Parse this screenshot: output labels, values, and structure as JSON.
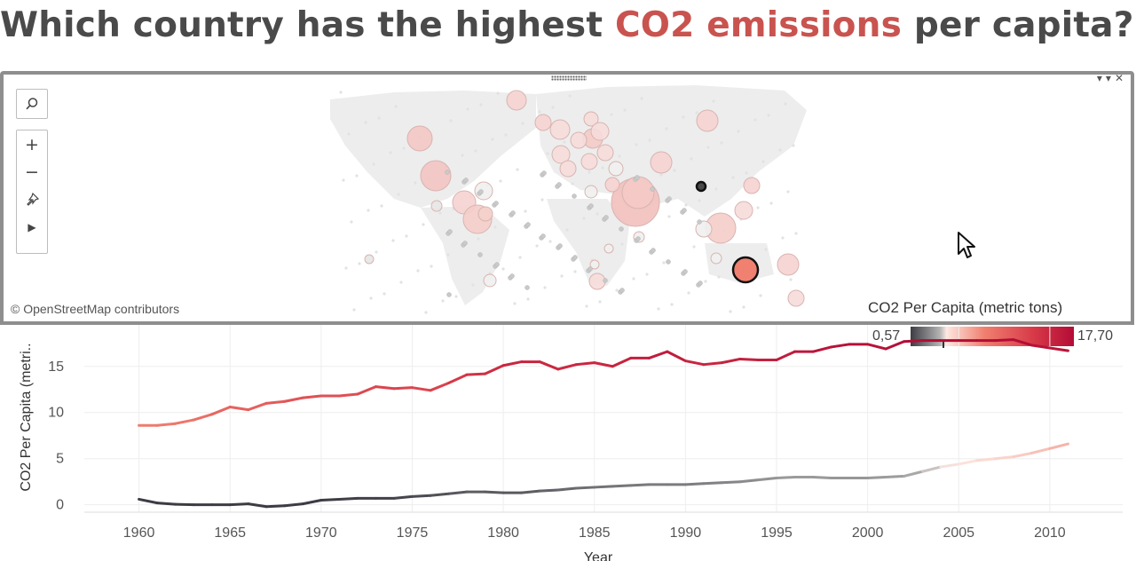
{
  "title": {
    "prefix": "Which country has the highest ",
    "highlight": "CO2 emissions",
    "suffix": " per capita?",
    "highlight_color": "#c9534f"
  },
  "map": {
    "attribution": "© OpenStreetMap contributors",
    "tools": [
      "search-icon",
      "zoom-in-icon",
      "zoom-out-icon",
      "pin-icon",
      "play-icon"
    ],
    "tool_glyphs": {
      "zoom_in": "+",
      "zoom_out": "−",
      "play": "▶"
    },
    "window_controls": "▾▾✕"
  },
  "legend": {
    "title": "CO2 Per Capita (metric tons)",
    "min": "0,57",
    "max": "17,70",
    "colors": [
      "#3c3c44",
      "#b4b4b4",
      "#fde8e2",
      "#f08070",
      "#d83a48",
      "#b30c36"
    ]
  },
  "chart_data": {
    "type": "line",
    "xlabel": "Year",
    "ylabel": "CO2 Per Capita (metri..",
    "x_ticks": [
      "1960",
      "1965",
      "1970",
      "1975",
      "1980",
      "1985",
      "1990",
      "1995",
      "2000",
      "2005",
      "2010"
    ],
    "y_ticks": [
      "0",
      "5",
      "10",
      "15"
    ],
    "xlim": [
      1957,
      2014
    ],
    "ylim": [
      -0.8,
      19.5
    ],
    "grid": true,
    "x": [
      1960,
      1961,
      1962,
      1963,
      1964,
      1965,
      1966,
      1967,
      1968,
      1969,
      1970,
      1971,
      1972,
      1973,
      1974,
      1975,
      1976,
      1977,
      1978,
      1979,
      1980,
      1981,
      1982,
      1983,
      1984,
      1985,
      1986,
      1987,
      1988,
      1989,
      1990,
      1991,
      1992,
      1993,
      1994,
      1995,
      1996,
      1997,
      1998,
      1999,
      2000,
      2001,
      2002,
      2003,
      2004,
      2005,
      2006,
      2007,
      2008,
      2009,
      2010,
      2011
    ],
    "series": [
      {
        "values": [
          8.6,
          8.6,
          8.8,
          9.2,
          9.8,
          10.6,
          10.3,
          11.0,
          11.2,
          11.6,
          11.8,
          11.8,
          12.0,
          12.8,
          12.6,
          12.7,
          12.4,
          13.2,
          14.1,
          14.2,
          15.1,
          15.5,
          15.5,
          14.7,
          15.2,
          15.4,
          15.0,
          15.9,
          15.9,
          16.6,
          15.6,
          15.2,
          15.4,
          15.8,
          15.7,
          15.7,
          16.6,
          16.6,
          17.1,
          17.4,
          17.4,
          16.9,
          17.7,
          17.8,
          17.8,
          17.8,
          17.8,
          17.8,
          17.9,
          17.3,
          17.0,
          16.7
        ]
      },
      {
        "values": [
          0.6,
          0.2,
          0.05,
          0.0,
          0.0,
          0.0,
          0.1,
          -0.2,
          -0.1,
          0.1,
          0.5,
          0.6,
          0.7,
          0.7,
          0.7,
          0.9,
          1.0,
          1.2,
          1.4,
          1.4,
          1.3,
          1.3,
          1.5,
          1.6,
          1.8,
          1.9,
          2.0,
          2.1,
          2.2,
          2.2,
          2.2,
          2.3,
          2.4,
          2.5,
          2.7,
          2.9,
          3.0,
          3.0,
          2.9,
          2.9,
          2.9,
          3.0,
          3.1,
          3.6,
          4.1,
          4.4,
          4.8,
          5.0,
          5.2,
          5.6,
          6.1,
          6.6
        ]
      }
    ],
    "colors": [
      "#b30c36",
      "#3c3c44"
    ]
  }
}
